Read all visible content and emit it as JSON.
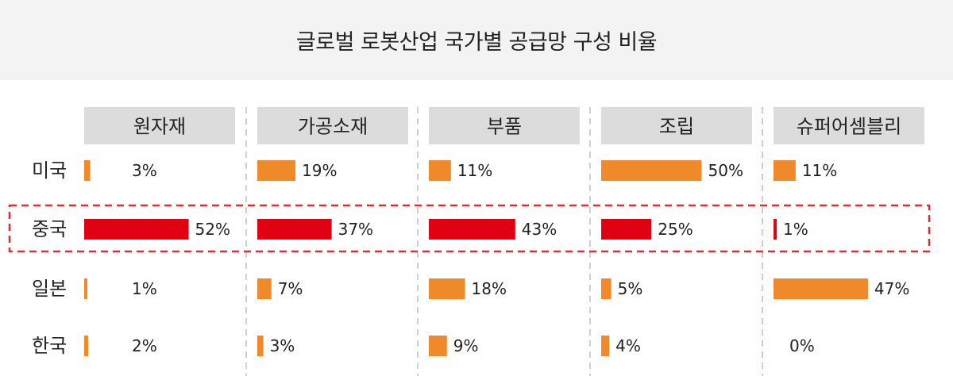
{
  "chart_data": {
    "type": "bar",
    "title": "글로벌 로봇산업 국가별 공급망 구성 비율",
    "categories": [
      "원자재",
      "가공소재",
      "부품",
      "조립",
      "슈퍼어셈블리"
    ],
    "series": [
      {
        "name": "미국",
        "values": [
          3,
          19,
          11,
          50,
          11
        ],
        "labels": [
          "3%",
          "19%",
          "11%",
          "50%",
          "11%"
        ]
      },
      {
        "name": "중국",
        "values": [
          52,
          37,
          43,
          25,
          1
        ],
        "labels": [
          "52%",
          "37%",
          "43%",
          "25%",
          "1%"
        ],
        "highlight": true
      },
      {
        "name": "일본",
        "values": [
          1,
          7,
          18,
          5,
          47
        ],
        "labels": [
          "1%",
          "7%",
          "18%",
          "5%",
          "47%"
        ]
      },
      {
        "name": "한국",
        "values": [
          2,
          3,
          9,
          4,
          0
        ],
        "labels": [
          "2%",
          "3%",
          "9%",
          "4%",
          "0%"
        ]
      }
    ],
    "xlim": [
      0,
      100
    ],
    "grid": false,
    "legend": "none",
    "colors": {
      "bar": "#f0892a",
      "highlight_bar": "#e10012",
      "highlight_box": "#e32b35",
      "divider": "#cfcfcf",
      "header_bg": "#dcdcdc"
    }
  }
}
